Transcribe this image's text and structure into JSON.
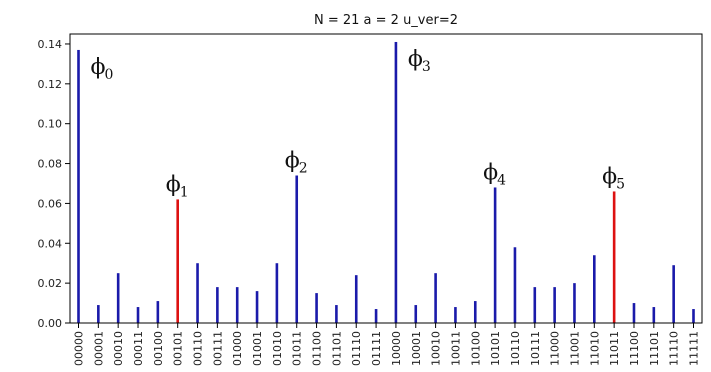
{
  "chart_data": {
    "type": "bar",
    "title": "N = 21 a = 2 u_ver=2",
    "xlabel": "",
    "ylabel": "",
    "ylim": [
      0,
      0.145
    ],
    "yticks": [
      "0.00",
      "0.02",
      "0.04",
      "0.06",
      "0.08",
      "0.10",
      "0.12",
      "0.14"
    ],
    "ytick_values": [
      0,
      0.02,
      0.04,
      0.06,
      0.08,
      0.1,
      0.12,
      0.14
    ],
    "categories": [
      "00000",
      "00001",
      "00010",
      "00011",
      "00100",
      "00101",
      "00110",
      "00111",
      "01000",
      "01001",
      "01010",
      "01011",
      "01100",
      "01101",
      "01110",
      "01111",
      "10000",
      "10001",
      "10010",
      "10011",
      "10100",
      "10101",
      "10110",
      "10111",
      "11000",
      "11001",
      "11010",
      "11011",
      "11100",
      "11101",
      "11110",
      "11111"
    ],
    "values": [
      0.137,
      0.009,
      0.025,
      0.008,
      0.011,
      0.062,
      0.03,
      0.018,
      0.018,
      0.016,
      0.03,
      0.074,
      0.015,
      0.009,
      0.024,
      0.007,
      0.141,
      0.009,
      0.025,
      0.008,
      0.011,
      0.068,
      0.038,
      0.018,
      0.018,
      0.02,
      0.034,
      0.066,
      0.01,
      0.008,
      0.029,
      0.007
    ],
    "colors": {
      "default": "#1a1aaa",
      "highlight": "#dd1111",
      "axis": "#000000"
    },
    "highlighted": [
      "00101",
      "11011"
    ],
    "annotations": [
      {
        "symbol": "ϕ",
        "sub": "0",
        "category": "00000",
        "y": 0.137
      },
      {
        "symbol": "ϕ",
        "sub": "1",
        "category": "00101",
        "y": 0.062
      },
      {
        "symbol": "ϕ",
        "sub": "2",
        "category": "01011",
        "y": 0.074
      },
      {
        "symbol": "ϕ",
        "sub": "3",
        "category": "10000",
        "y": 0.141
      },
      {
        "symbol": "ϕ",
        "sub": "4",
        "category": "10101",
        "y": 0.068
      },
      {
        "symbol": "ϕ",
        "sub": "5",
        "category": "11011",
        "y": 0.066
      }
    ]
  }
}
